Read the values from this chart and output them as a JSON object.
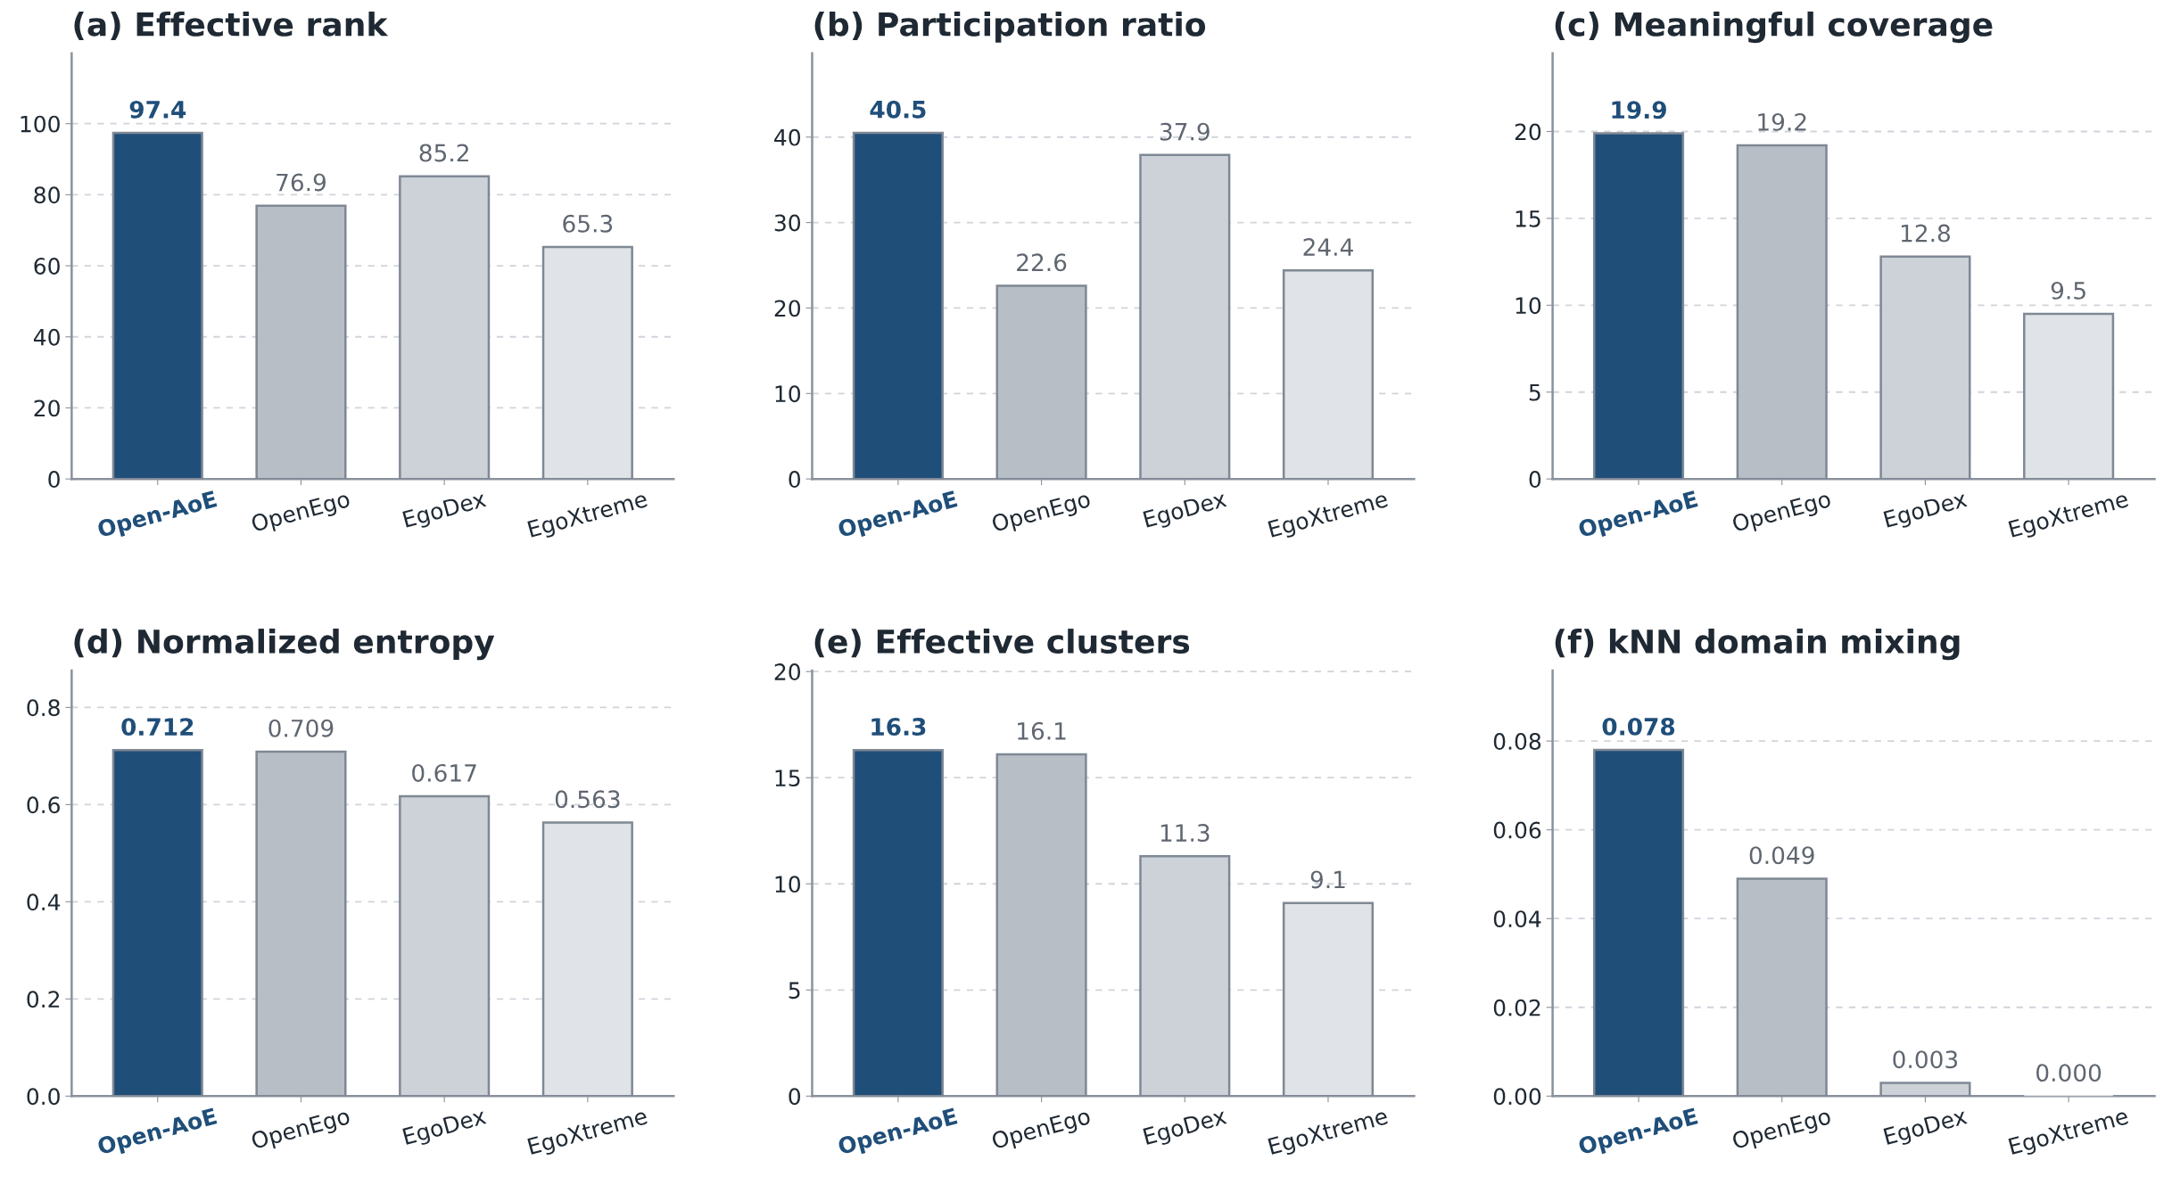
{
  "chart_data": [
    {
      "type": "bar",
      "title": "(a) Effective rank",
      "categories": [
        "Open-AoE",
        "OpenEgo",
        "EgoDex",
        "EgoXtreme"
      ],
      "values": [
        97.4,
        76.9,
        85.2,
        65.3
      ],
      "value_labels": [
        "97.4",
        "76.9",
        "85.2",
        "65.3"
      ],
      "colors": [
        "#1f4e79",
        "#b8bec6",
        "#cdd2d8",
        "#e0e3e7"
      ],
      "ylim": [
        0,
        119.8
      ],
      "yticks": [
        0,
        20,
        40,
        60,
        80,
        100
      ],
      "grid": "y",
      "legend": false
    },
    {
      "type": "bar",
      "title": "(b) Participation ratio",
      "categories": [
        "Open-AoE",
        "OpenEgo",
        "EgoDex",
        "EgoXtreme"
      ],
      "values": [
        40.5,
        22.6,
        37.9,
        24.4
      ],
      "value_labels": [
        "40.5",
        "22.6",
        "37.9",
        "24.4"
      ],
      "colors": [
        "#1f4e79",
        "#b8bec6",
        "#cdd2d8",
        "#e0e3e7"
      ],
      "ylim": [
        0,
        49.8
      ],
      "yticks": [
        0,
        10,
        20,
        30,
        40
      ],
      "grid": "y",
      "legend": false
    },
    {
      "type": "bar",
      "title": "(c) Meaningful coverage",
      "categories": [
        "Open-AoE",
        "OpenEgo",
        "EgoDex",
        "EgoXtreme"
      ],
      "values": [
        19.9,
        19.2,
        12.8,
        9.5
      ],
      "value_labels": [
        "19.9",
        "19.2",
        "12.8",
        "9.5"
      ],
      "colors": [
        "#1f4e79",
        "#b8bec6",
        "#cdd2d8",
        "#e0e3e7"
      ],
      "ylim": [
        0,
        24.5
      ],
      "yticks": [
        0,
        5,
        10,
        15,
        20
      ],
      "grid": "y",
      "legend": false
    },
    {
      "type": "bar",
      "title": "(d) Normalized entropy",
      "categories": [
        "Open-AoE",
        "OpenEgo",
        "EgoDex",
        "EgoXtreme"
      ],
      "values": [
        0.712,
        0.709,
        0.617,
        0.563
      ],
      "value_labels": [
        "0.712",
        "0.709",
        "0.617",
        "0.563"
      ],
      "colors": [
        "#1f4e79",
        "#b8bec6",
        "#cdd2d8",
        "#e0e3e7"
      ],
      "ylim": [
        0,
        0.876
      ],
      "yticks": [
        {
          "value": 0,
          "label": "0.0"
        },
        {
          "value": 0.2,
          "label": "0.2"
        },
        {
          "value": 0.4,
          "label": "0.4"
        },
        {
          "value": 0.6,
          "label": "0.6"
        },
        {
          "value": 0.8,
          "label": "0.8"
        }
      ],
      "grid": "y",
      "legend": false
    },
    {
      "type": "bar",
      "title": "(e) Effective clusters",
      "categories": [
        "Open-AoE",
        "OpenEgo",
        "EgoDex",
        "EgoXtreme"
      ],
      "values": [
        16.3,
        16.1,
        11.3,
        9.1
      ],
      "value_labels": [
        "16.3",
        "16.1",
        "11.3",
        "9.1"
      ],
      "colors": [
        "#1f4e79",
        "#b8bec6",
        "#cdd2d8",
        "#e0e3e7"
      ],
      "ylim": [
        0,
        20.05
      ],
      "yticks": [
        0,
        5,
        10,
        15,
        20
      ],
      "grid": "y",
      "legend": false
    },
    {
      "type": "bar",
      "title": "(f) kNN domain mixing",
      "categories": [
        "Open-AoE",
        "OpenEgo",
        "EgoDex",
        "EgoXtreme"
      ],
      "values": [
        0.078,
        0.049,
        0.003,
        0.0
      ],
      "value_labels": [
        "0.078",
        "0.049",
        "0.003",
        "0.000"
      ],
      "colors": [
        "#1f4e79",
        "#b8bec6",
        "#cdd2d8",
        "#e0e3e7"
      ],
      "ylim": [
        0,
        0.0959
      ],
      "yticks": [
        {
          "value": 0,
          "label": "0.00"
        },
        {
          "value": 0.02,
          "label": "0.02"
        },
        {
          "value": 0.04,
          "label": "0.04"
        },
        {
          "value": 0.06,
          "label": "0.06"
        },
        {
          "value": 0.08,
          "label": "0.08"
        }
      ],
      "grid": "y",
      "legend": false
    }
  ]
}
